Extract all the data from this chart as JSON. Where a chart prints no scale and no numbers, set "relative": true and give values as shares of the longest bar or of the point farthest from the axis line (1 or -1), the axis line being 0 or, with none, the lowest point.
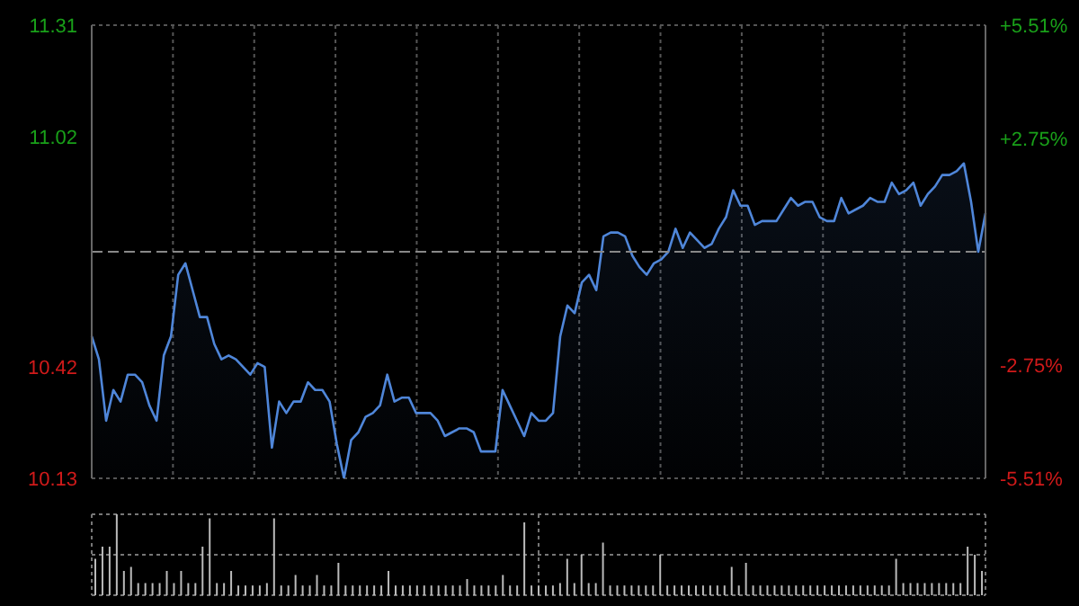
{
  "chart_data": [
    {
      "type": "area",
      "categories": [
        null,
        null,
        null,
        null,
        null,
        null,
        null,
        null,
        null,
        null,
        null,
        null,
        null,
        null,
        null,
        null,
        null,
        null,
        null,
        null,
        null,
        null,
        null,
        null,
        null,
        null,
        null,
        null,
        null,
        null,
        null,
        null,
        null,
        null,
        null,
        null,
        null,
        null,
        null,
        null,
        null,
        null,
        null,
        null,
        null,
        null,
        null,
        null,
        null,
        null,
        null,
        null,
        null,
        null,
        null,
        null,
        null,
        null,
        null,
        null,
        null,
        null,
        null,
        null,
        null,
        null,
        null,
        null,
        null,
        null,
        null,
        null,
        null,
        null,
        null,
        null,
        null,
        null,
        null,
        null,
        null,
        null,
        null,
        null,
        null,
        null,
        null,
        null,
        null,
        null,
        null,
        null,
        null,
        null,
        null,
        null,
        null,
        null,
        null,
        null,
        null,
        null,
        null,
        null,
        null,
        null,
        null,
        null,
        null,
        null,
        null,
        null,
        null,
        null,
        null,
        null,
        null,
        null,
        null,
        null,
        null,
        null,
        null,
        null,
        null
      ],
      "series": [
        {
          "color": "#4f86d9",
          "values": [
            10.5,
            10.44,
            10.28,
            10.36,
            10.33,
            10.4,
            10.4,
            10.38,
            10.32,
            10.28,
            10.45,
            10.5,
            10.66,
            10.69,
            10.62,
            10.55,
            10.55,
            10.48,
            10.44,
            10.45,
            10.44,
            10.42,
            10.4,
            10.43,
            10.42,
            10.21,
            10.33,
            10.3,
            10.33,
            10.33,
            10.38,
            10.36,
            10.36,
            10.33,
            10.22,
            10.13,
            10.23,
            10.25,
            10.29,
            10.3,
            10.32,
            10.4,
            10.33,
            10.34,
            10.34,
            10.3,
            10.3,
            10.3,
            10.28,
            10.24,
            10.25,
            10.26,
            10.26,
            10.25,
            10.2,
            10.2,
            10.2,
            10.36,
            10.32,
            10.28,
            10.24,
            10.3,
            10.28,
            10.28,
            10.3,
            10.5,
            10.58,
            10.56,
            10.64,
            10.66,
            10.62,
            10.76,
            10.77,
            10.77,
            10.76,
            10.71,
            10.68,
            10.66,
            10.69,
            10.7,
            10.72,
            10.78,
            10.73,
            10.77,
            10.75,
            10.73,
            10.74,
            10.78,
            10.81,
            10.88,
            10.84,
            10.84,
            10.79,
            10.8,
            10.8,
            10.8,
            10.83,
            10.86,
            10.84,
            10.85,
            10.85,
            10.81,
            10.8,
            10.8,
            10.86,
            10.82,
            10.83,
            10.84,
            10.86,
            10.85,
            10.85,
            10.9,
            10.87,
            10.88,
            10.9,
            10.84,
            10.87,
            10.89,
            10.92,
            10.92,
            10.93,
            10.95,
            10.85,
            10.72,
            10.82
          ]
        }
      ],
      "ylim": [
        10.13,
        11.31
      ],
      "yticks": [
        10.13,
        10.42,
        11.02,
        11.31
      ],
      "y2lim": [
        -5.51,
        5.51
      ],
      "y2ticks": [
        {
          "value": -5.51,
          "label": "-5.51%"
        },
        {
          "value": -2.75,
          "label": "-2.75%"
        },
        {
          "value": 2.75,
          "label": "+2.75%"
        },
        {
          "value": 5.51,
          "label": "+5.51%"
        }
      ],
      "ref_lines": [
        {
          "axis": "y",
          "value": 10.72,
          "line_style": "dashed",
          "color": "#888888"
        }
      ],
      "grid": true,
      "tick_labels": "y",
      "legend": false
    },
    {
      "type": "bar",
      "relative": true,
      "categories": [
        null,
        null,
        null,
        null,
        null,
        null,
        null,
        null,
        null,
        null,
        null,
        null,
        null,
        null,
        null,
        null,
        null,
        null,
        null,
        null,
        null,
        null,
        null,
        null,
        null,
        null,
        null,
        null,
        null,
        null,
        null,
        null,
        null,
        null,
        null,
        null,
        null,
        null,
        null,
        null,
        null,
        null,
        null,
        null,
        null,
        null,
        null,
        null,
        null,
        null,
        null,
        null,
        null,
        null,
        null,
        null,
        null,
        null,
        null,
        null,
        null,
        null,
        null,
        null,
        null,
        null,
        null,
        null,
        null,
        null,
        null,
        null,
        null,
        null,
        null,
        null,
        null,
        null,
        null,
        null,
        null,
        null,
        null,
        null,
        null,
        null,
        null,
        null,
        null,
        null,
        null,
        null,
        null,
        null,
        null,
        null,
        null,
        null,
        null,
        null,
        null,
        null,
        null,
        null,
        null,
        null,
        null,
        null,
        null,
        null,
        null,
        null,
        null,
        null,
        null,
        null,
        null,
        null,
        null,
        null,
        null,
        null,
        null,
        null,
        null
      ],
      "series": [
        {
          "color": "#bbbbbb",
          "values": [
            0.45,
            0.6,
            0.6,
            1.0,
            0.3,
            0.35,
            0.15,
            0.15,
            0.15,
            0.15,
            0.3,
            0.15,
            0.3,
            0.15,
            0.15,
            0.6,
            0.95,
            0.15,
            0.15,
            0.3,
            0.12,
            0.12,
            0.12,
            0.12,
            0.15,
            0.95,
            0.12,
            0.12,
            0.25,
            0.12,
            0.12,
            0.25,
            0.12,
            0.12,
            0.4,
            0.12,
            0.12,
            0.12,
            0.12,
            0.12,
            0.12,
            0.3,
            0.12,
            0.12,
            0.12,
            0.12,
            0.12,
            0.12,
            0.12,
            0.12,
            0.12,
            0.12,
            0.2,
            0.12,
            0.12,
            0.12,
            0.12,
            0.25,
            0.12,
            0.12,
            0.9,
            0.12,
            0.12,
            0.12,
            0.12,
            0.15,
            0.45,
            0.15,
            0.5,
            0.15,
            0.15,
            0.65,
            0.12,
            0.12,
            0.12,
            0.12,
            0.12,
            0.12,
            0.12,
            0.5,
            0.12,
            0.12,
            0.12,
            0.12,
            0.12,
            0.12,
            0.12,
            0.12,
            0.12,
            0.35,
            0.12,
            0.4,
            0.12,
            0.12,
            0.12,
            0.12,
            0.12,
            0.12,
            0.12,
            0.12,
            0.12,
            0.12,
            0.12,
            0.12,
            0.12,
            0.12,
            0.12,
            0.12,
            0.12,
            0.12,
            0.12,
            0.12,
            0.45,
            0.15,
            0.15,
            0.15,
            0.15,
            0.15,
            0.15,
            0.15,
            0.15,
            0.15,
            0.6,
            0.5,
            0.3
          ]
        }
      ],
      "grid": true
    }
  ]
}
